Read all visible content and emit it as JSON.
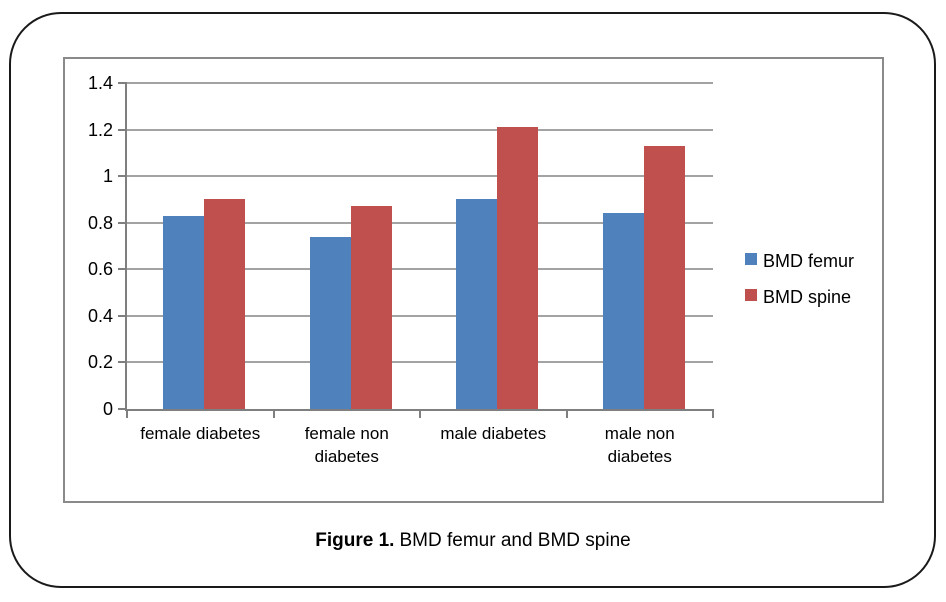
{
  "chart_data": {
    "type": "bar",
    "title": "",
    "categories": [
      "female diabetes",
      "female non diabetes",
      "male diabetes",
      "male non diabetes"
    ],
    "series": [
      {
        "name": "BMD femur",
        "color": "#4F81BD",
        "values": [
          0.83,
          0.74,
          0.9,
          0.84
        ]
      },
      {
        "name": "BMD spine",
        "color": "#C0504D",
        "values": [
          0.9,
          0.87,
          1.21,
          1.13
        ]
      }
    ],
    "xlabel": "",
    "ylabel": "",
    "ylim": [
      0,
      1.4
    ],
    "ytick_step": 0.2,
    "ytick_labels": [
      "0",
      "0.2",
      "0.4",
      "0.6",
      "0.8",
      "1",
      "1.2",
      "1.4"
    ],
    "grid": true,
    "legend_position": "right",
    "gridline_color": "#a3a3a3",
    "axis_color": "#7f7f7f"
  },
  "caption": {
    "bold": "Figure 1.",
    "text": "BMD femur and BMD spine"
  }
}
